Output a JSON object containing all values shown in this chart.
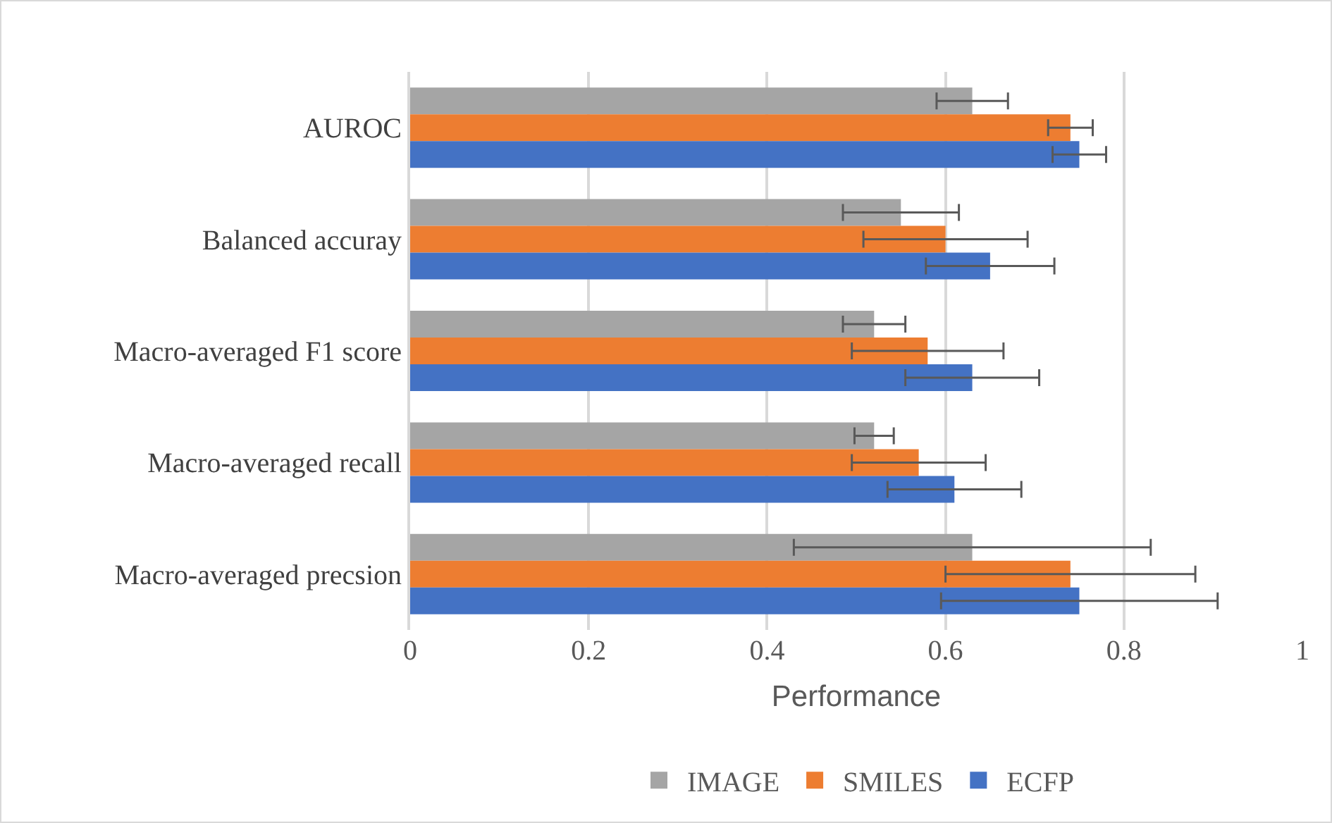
{
  "chart_data": {
    "type": "bar",
    "orientation": "horizontal",
    "xlabel": "Performance",
    "categories": [
      "AUROC",
      "Balanced accuray",
      "Macro-averaged F1 score",
      "Macro-averaged recall",
      "Macro-averaged precsion"
    ],
    "series": [
      {
        "name": "IMAGE",
        "color": "#a5a5a5",
        "values": [
          0.63,
          0.55,
          0.52,
          0.52,
          0.63
        ],
        "errors": [
          0.04,
          0.065,
          0.035,
          0.022,
          0.2
        ]
      },
      {
        "name": "SMILES",
        "color": "#ed7d31",
        "values": [
          0.74,
          0.6,
          0.58,
          0.57,
          0.74
        ],
        "errors": [
          0.025,
          0.092,
          0.085,
          0.075,
          0.14
        ]
      },
      {
        "name": "ECFP",
        "color": "#4472c4",
        "values": [
          0.75,
          0.65,
          0.63,
          0.61,
          0.75
        ],
        "errors": [
          0.03,
          0.072,
          0.075,
          0.075,
          0.155
        ]
      }
    ],
    "xlim": [
      0,
      1
    ],
    "xticks": [
      0,
      0.2,
      0.4,
      0.6,
      0.8,
      1
    ],
    "grid": "x",
    "legend": "bottom"
  }
}
